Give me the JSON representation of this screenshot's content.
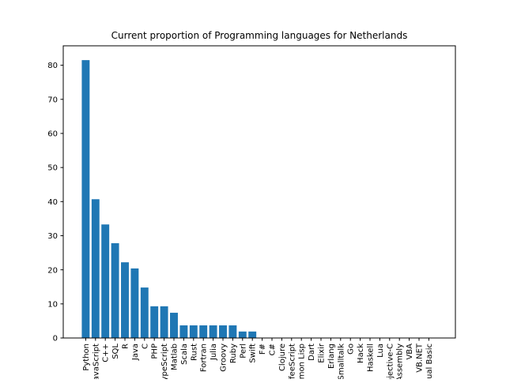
{
  "chart_data": {
    "type": "bar",
    "title": "Current proportion of Programming languages for Netherlands",
    "xlabel": "",
    "ylabel": "",
    "ylim": [
      0,
      85.7
    ],
    "yticks": [
      0,
      10,
      20,
      30,
      40,
      50,
      60,
      70,
      80
    ],
    "grid": false,
    "bar_color": "#1f77b4",
    "categories": [
      "Python",
      "JavaScript",
      "C++",
      "SQL",
      "R",
      "Java",
      "C",
      "PHP",
      "TypeScript",
      "Matlab",
      "Scala",
      "Rust",
      "Fortran",
      "Julia",
      "Groovy",
      "Ruby",
      "Perl",
      "Swift",
      "F#",
      "C#",
      "Clojure",
      "CoffeeScript",
      "Common Lisp",
      "Dart",
      "Elixir",
      "Erlang",
      "Smalltalk",
      "Go",
      "Hack",
      "Haskell",
      "Lua",
      "Objective-C",
      "Assembly",
      "VBA",
      "VB.NET",
      "Visual Basic"
    ],
    "values": [
      81.5,
      40.7,
      33.3,
      27.8,
      22.2,
      20.4,
      14.8,
      9.3,
      9.3,
      7.4,
      3.7,
      3.7,
      3.7,
      3.7,
      3.7,
      3.7,
      1.9,
      1.9,
      0,
      0,
      0,
      0,
      0,
      0,
      0,
      0,
      0,
      0,
      0,
      0,
      0,
      0,
      0,
      0,
      0,
      0
    ]
  }
}
